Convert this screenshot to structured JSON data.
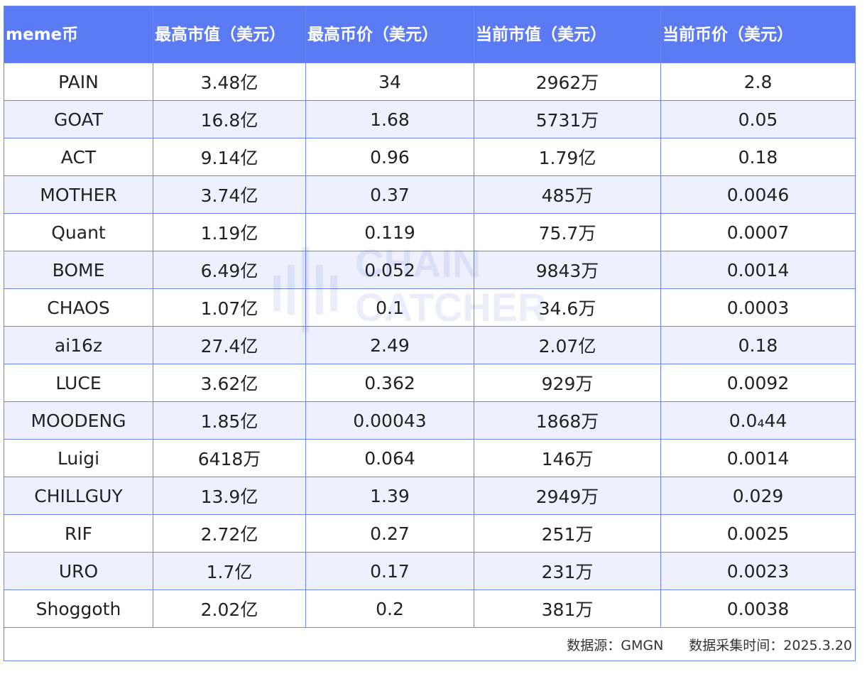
{
  "header": [
    "meme币",
    "最高市值（美元）",
    "最高币价（美元）",
    "当前市值（美元）",
    "当前币价（美元）"
  ],
  "rows": [
    [
      "PAIN",
      "3.48亿",
      "34",
      "2962万",
      "2.8"
    ],
    [
      "GOAT",
      "16.8亿",
      "1.68",
      "5731万",
      "0.05"
    ],
    [
      "ACT",
      "9.14亿",
      "0.96",
      "1.79亿",
      "0.18"
    ],
    [
      "MOTHER",
      "3.74亿",
      "0.37",
      "485万",
      "0.0046"
    ],
    [
      "Quant",
      "1.19亿",
      "0.119",
      "75.7万",
      "0.0007"
    ],
    [
      "BOME",
      "6.49亿",
      "0.052",
      "9843万",
      "0.0014"
    ],
    [
      "CHAOS",
      "1.07亿",
      "0.1",
      "34.6万",
      "0.0003"
    ],
    [
      "ai16z",
      "27.4亿",
      "2.49",
      "2.07亿",
      "0.18"
    ],
    [
      "LUCE",
      "3.62亿",
      "0.362",
      "929万",
      "0.0092"
    ],
    [
      "MOODENG",
      "1.85亿",
      "0.00043",
      "1868万",
      "0.0₄44"
    ],
    [
      "Luigi",
      "6418万",
      "0.064",
      "146万",
      "0.0014"
    ],
    [
      "CHILLGUY",
      "13.9亿",
      "1.39",
      "2949万",
      "0.029"
    ],
    [
      "RIF",
      "2.72亿",
      "0.27",
      "251万",
      "0.0025"
    ],
    [
      "URO",
      "1.7亿",
      "0.17",
      "231万",
      "0.0023"
    ],
    [
      "Shoggoth",
      "2.02亿",
      "0.2",
      "381万",
      "0.0038"
    ]
  ],
  "footer": {
    "source": "数据源：GMGN",
    "collected": "数据采集时间：2025.3.20"
  },
  "watermark": "CHAIN CATCHER",
  "colors": {
    "header_bg": "#5b7bf5",
    "alt_row_bg": "#eef1fd",
    "border": "#6d84ee"
  }
}
